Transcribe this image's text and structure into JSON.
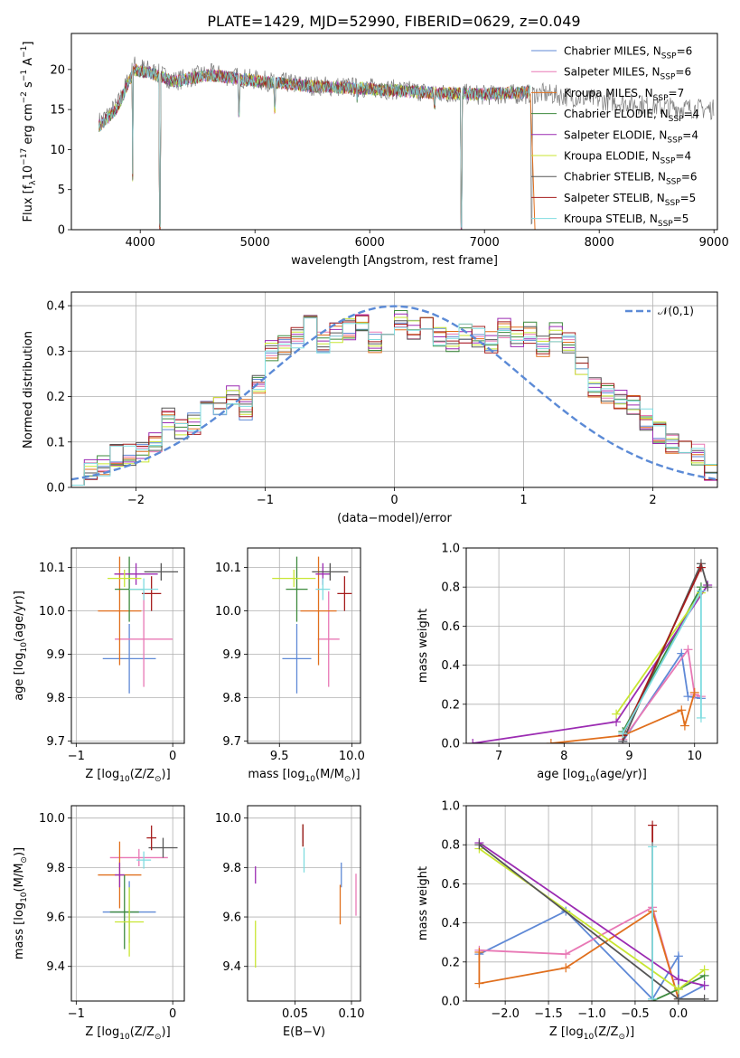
{
  "title": "PLATE=1429, MJD=52990, FIBERID=0629, z=0.049",
  "colors": [
    "#5f89d6",
    "#e878b5",
    "#e06f1d",
    "#3d8a3d",
    "#9b2bb2",
    "#c8e632",
    "#555555",
    "#a51c1c",
    "#7fdce0"
  ],
  "chart_data": [
    {
      "id": "spectrum",
      "type": "line",
      "xlabel": "wavelength [Angstrom, rest frame]",
      "ylabel": "Flux [f$_\\lambda$10$^{-17}$ erg cm$^{-2}$ s$^{-1}$ A$^{-1}$]",
      "xlim": [
        3400,
        9030
      ],
      "ylim": [
        0,
        24.5
      ],
      "xticks": [
        "4000",
        "5000",
        "6000",
        "7000",
        "8000",
        "9000"
      ],
      "yticks": [
        "0",
        "5",
        "10",
        "15",
        "20"
      ],
      "legend": [
        "Chabrier MILES, N$_{SSP}$=6",
        "Salpeter MILES, N$_{SSP}$=6",
        "Kroupa MILES, N$_{SSP}$=7",
        "Chabrier ELODIE, N$_{SSP}$=4",
        "Salpeter ELODIE, N$_{SSP}$=4",
        "Kroupa ELODIE, N$_{SSP}$=4",
        "Chabrier STELIB, N$_{SSP}$=6",
        "Salpeter STELIB, N$_{SSP}$=5",
        "Kroupa STELIB, N$_{SSP}$=5"
      ],
      "legend_position": "upper right",
      "observed_continuum": [
        [
          3650,
          13.5
        ],
        [
          3800,
          15.5
        ],
        [
          3950,
          20.5
        ],
        [
          4100,
          19.8
        ],
        [
          4300,
          18.6
        ],
        [
          4600,
          19.5
        ],
        [
          5000,
          18.7
        ],
        [
          5500,
          18.0
        ],
        [
          6000,
          17.7
        ],
        [
          6500,
          17.2
        ],
        [
          7000,
          16.8
        ],
        [
          7500,
          17.0
        ],
        [
          8000,
          16.2
        ],
        [
          8500,
          15.4
        ],
        [
          9000,
          15.0
        ]
      ],
      "model_continuum": [
        [
          3650,
          13.0
        ],
        [
          3800,
          15.2
        ],
        [
          3950,
          20.0
        ],
        [
          4100,
          19.5
        ],
        [
          4300,
          18.5
        ],
        [
          4600,
          19.3
        ],
        [
          5000,
          18.6
        ],
        [
          5500,
          17.9
        ],
        [
          6000,
          17.6
        ],
        [
          6500,
          17.1
        ],
        [
          7000,
          16.9
        ],
        [
          7400,
          17.2
        ]
      ],
      "model_end_wavelength": 7400,
      "absorption_features": [
        [
          3934,
          6
        ],
        [
          4173,
          0
        ],
        [
          4860,
          14
        ],
        [
          5175,
          14.5
        ],
        [
          5890,
          15.5
        ],
        [
          6563,
          15
        ],
        [
          6800,
          0
        ],
        [
          7410,
          0
        ]
      ]
    },
    {
      "id": "residuals",
      "type": "histogram",
      "xlabel": "(data-model)/error",
      "ylabel": "Normed distribution",
      "xlim": [
        -2.5,
        2.5
      ],
      "ylim": [
        0,
        0.43
      ],
      "xticks": [
        "−2",
        "−1",
        "0",
        "1",
        "2"
      ],
      "yticks": [
        "0.0",
        "0.1",
        "0.2",
        "0.3",
        "0.4"
      ],
      "legend": [
        "$\\mathcal{N}(0,1)$"
      ],
      "legend_position": "upper right",
      "normal_curve_color": "#5b8ad6",
      "bin_width": 0.1,
      "histogram_base": [
        0.03,
        0.04,
        0.05,
        0.07,
        0.07,
        0.08,
        0.1,
        0.15,
        0.13,
        0.14,
        0.17,
        0.18,
        0.2,
        0.17,
        0.23,
        0.3,
        0.31,
        0.33,
        0.36,
        0.32,
        0.34,
        0.35,
        0.36,
        0.32,
        0.35,
        0.37,
        0.35,
        0.36,
        0.33,
        0.32,
        0.34,
        0.33,
        0.32,
        0.35,
        0.33,
        0.34,
        0.31,
        0.34,
        0.32,
        0.27,
        0.22,
        0.21,
        0.19,
        0.18,
        0.15,
        0.12,
        0.1,
        0.08,
        0.07,
        0.03
      ]
    },
    {
      "id": "age-vs-Z",
      "type": "errorbar",
      "xlabel": "Z [log$_{10}$(Z/Z$_\\odot$)]",
      "ylabel": "age  [log$_{10}$(age/yr)]",
      "xlim": [
        -1.05,
        0.12
      ],
      "ylim": [
        9.695,
        10.145
      ],
      "xticks": [
        "−1",
        "0"
      ],
      "yticks": [
        "9.7",
        "9.8",
        "9.9",
        "10.0",
        "10.1"
      ],
      "points": [
        [
          -0.45,
          9.89,
          0.55,
          0.16
        ],
        [
          -0.3,
          9.935,
          0.6,
          0.22
        ],
        [
          -0.55,
          10.0,
          0.45,
          0.25
        ],
        [
          -0.45,
          10.05,
          0.3,
          0.15
        ],
        [
          -0.38,
          10.085,
          0.45,
          0.05
        ],
        [
          -0.5,
          10.075,
          0.35,
          0.04
        ],
        [
          -0.12,
          10.09,
          0.35,
          0.04
        ],
        [
          -0.22,
          10.04,
          0.2,
          0.08
        ],
        [
          -0.3,
          10.05,
          0.3,
          0.05
        ]
      ]
    },
    {
      "id": "age-vs-mass",
      "type": "errorbar",
      "xlabel": "mass [log$_{10}$(M/M$_\\odot$)]",
      "ylabel": "",
      "xlim": [
        9.28,
        10.06
      ],
      "ylim": [
        9.695,
        10.145
      ],
      "xticks": [
        "9.5",
        "10.0"
      ],
      "yticks": [
        "9.7",
        "9.8",
        "9.9",
        "10.0",
        "10.1"
      ],
      "points": [
        [
          9.62,
          9.89,
          0.2,
          0.16
        ],
        [
          9.84,
          9.935,
          0.15,
          0.22
        ],
        [
          9.77,
          10.0,
          0.25,
          0.25
        ],
        [
          9.62,
          10.05,
          0.15,
          0.15
        ],
        [
          9.8,
          10.085,
          0.1,
          0.05
        ],
        [
          9.6,
          10.075,
          0.3,
          0.04
        ],
        [
          9.85,
          10.09,
          0.25,
          0.04
        ],
        [
          9.95,
          10.04,
          0.1,
          0.08
        ],
        [
          9.8,
          10.05,
          0.1,
          0.05
        ]
      ]
    },
    {
      "id": "massweight-vs-age",
      "type": "line",
      "xlabel": "age  [log$_{10}$(age/yr)]",
      "ylabel": "mass weight",
      "xlim": [
        6.5,
        10.35
      ],
      "ylim": [
        0,
        1.0
      ],
      "xticks": [
        "7",
        "8",
        "9",
        "10"
      ],
      "yticks": [
        "0.0",
        "0.2",
        "0.4",
        "0.6",
        "0.8",
        "1.0"
      ],
      "series": [
        {
          "x": [
            8.9,
            9.8,
            9.9,
            10.1
          ],
          "y": [
            0.01,
            0.46,
            0.24,
            0.23
          ]
        },
        {
          "x": [
            8.9,
            9.9,
            10.0,
            10.1
          ],
          "y": [
            0.02,
            0.48,
            0.25,
            0.24
          ]
        },
        {
          "x": [
            7.8,
            8.9,
            9.8,
            9.85,
            10.0
          ],
          "y": [
            0.0,
            0.04,
            0.17,
            0.09,
            0.26
          ]
        },
        {
          "x": [
            8.9,
            10.1
          ],
          "y": [
            0.06,
            0.8
          ]
        },
        {
          "x": [
            6.6,
            8.8,
            10.2
          ],
          "y": [
            0.0,
            0.11,
            0.81
          ]
        },
        {
          "x": [
            8.8,
            10.1
          ],
          "y": [
            0.15,
            0.77
          ]
        },
        {
          "x": [
            8.9,
            10.1,
            10.2
          ],
          "y": [
            0.01,
            0.92,
            0.8
          ]
        },
        {
          "x": [
            8.9,
            10.1
          ],
          "y": [
            0.04,
            0.9
          ]
        },
        {
          "x": [
            8.9,
            10.1,
            10.1
          ],
          "y": [
            0.05,
            0.78,
            0.13
          ]
        }
      ]
    },
    {
      "id": "mass-vs-Z",
      "type": "errorbar",
      "xlabel": "Z [log$_{10}$(Z/Z$_\\odot$)]",
      "ylabel": "mass [log$_{10}$(M/M$_\\odot$)]",
      "xlim": [
        -1.05,
        0.12
      ],
      "ylim": [
        9.26,
        10.05
      ],
      "xticks": [
        "−1",
        "0"
      ],
      "yticks": [
        "9.4",
        "9.6",
        "9.8",
        "10.0"
      ],
      "points": [
        [
          -0.45,
          9.62,
          0.55,
          0.25
        ],
        [
          -0.35,
          9.84,
          0.6,
          0.07
        ],
        [
          -0.55,
          9.77,
          0.45,
          0.27
        ],
        [
          -0.5,
          9.62,
          0.3,
          0.3
        ],
        [
          -0.55,
          9.77,
          0.1,
          0.1
        ],
        [
          -0.45,
          9.58,
          0.3,
          0.28
        ],
        [
          -0.1,
          9.88,
          0.3,
          0.08
        ],
        [
          -0.22,
          9.92,
          0.1,
          0.1
        ],
        [
          -0.3,
          9.83,
          0.15,
          0.07
        ]
      ]
    },
    {
      "id": "mass-vs-ebv",
      "type": "errorbar",
      "xlabel": "E(B-V)",
      "ylabel": "",
      "xlim": [
        0.008,
        0.108
      ],
      "ylim": [
        9.26,
        10.05
      ],
      "xticks": [
        "0.05",
        "0.10"
      ],
      "yticks": [
        "9.4",
        "9.6",
        "9.8",
        "10.0"
      ],
      "points": [
        [
          0.091,
          9.77,
          0.0,
          0.1
        ],
        [
          0.104,
          9.69,
          0.0,
          0.17
        ],
        [
          0.09,
          9.65,
          0.0,
          0.16
        ],
        [
          0.057,
          9.93,
          0.0,
          0.09
        ],
        [
          0.015,
          9.77,
          0.0,
          0.07
        ],
        [
          0.015,
          9.49,
          0.0,
          0.19
        ],
        [
          0.057,
          9.93,
          0.0,
          0.06
        ],
        [
          0.057,
          9.93,
          0.0,
          0.09
        ],
        [
          0.058,
          9.83,
          0.0,
          0.1
        ]
      ]
    },
    {
      "id": "massweight-vs-Z",
      "type": "line",
      "xlabel": "Z [log$_{10}$(Z/Z$_\\odot$)]",
      "ylabel": "mass weight",
      "xlim": [
        -2.45,
        0.45
      ],
      "ylim": [
        0,
        1.0
      ],
      "xticks": [
        "−2.0",
        "−1.5",
        "−1.0",
        "−0.5",
        "0.0"
      ],
      "yticks": [
        "0.0",
        "0.2",
        "0.4",
        "0.6",
        "0.8",
        "1.0"
      ],
      "series": [
        {
          "x": [
            -2.3,
            -1.3,
            -0.3,
            0.0,
            0.0,
            0.3
          ],
          "y": [
            0.24,
            0.46,
            0.01,
            0.23,
            0.01,
            0.08
          ]
        },
        {
          "x": [
            -2.3,
            -1.3,
            -0.3,
            0.0
          ],
          "y": [
            0.26,
            0.24,
            0.48,
            0.01
          ]
        },
        {
          "x": [
            -2.3,
            -2.3,
            -1.3,
            -0.3,
            0.0
          ],
          "y": [
            0.25,
            0.09,
            0.17,
            0.46,
            0.01
          ]
        },
        {
          "x": [
            -0.3,
            0.0,
            0.3
          ],
          "y": [
            0.0,
            0.06,
            0.13
          ]
        },
        {
          "x": [
            -2.3,
            0.0,
            0.3
          ],
          "y": [
            0.81,
            0.11,
            0.08
          ]
        },
        {
          "x": [
            -2.3,
            0.0,
            0.3
          ],
          "y": [
            0.78,
            0.06,
            0.16
          ]
        },
        {
          "x": [
            -2.3,
            0.0,
            0.3
          ],
          "y": [
            0.8,
            0.01,
            0.01
          ]
        },
        {
          "x": [
            -0.3,
            -0.3
          ],
          "y": [
            0.9,
            0.0
          ]
        },
        {
          "x": [
            -0.3,
            -0.3
          ],
          "y": [
            0.79,
            0.01
          ]
        }
      ]
    }
  ]
}
